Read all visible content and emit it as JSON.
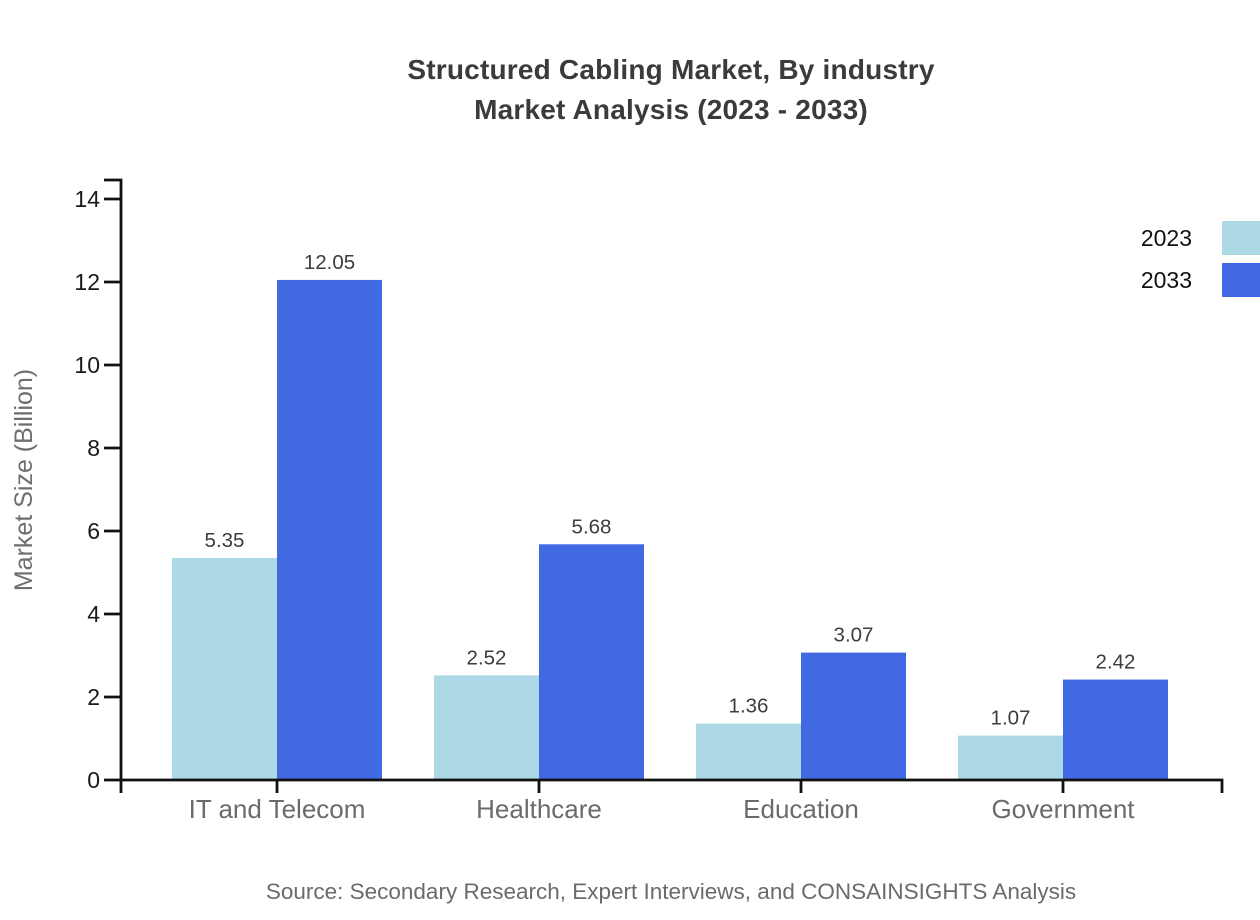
{
  "page": {
    "title_lines": [
      "Structured Cabling Market, By industry",
      "Market Analysis (2023 - 2033)"
    ],
    "source": "Source: Secondary Research, Expert Interviews, and CONSAINSIGHTS Analysis"
  },
  "colors": {
    "series_2023": "#ADD8E6",
    "series_2033": "#4169E1",
    "axis_line": "#111111",
    "ytick_label": "#1a1a1a",
    "category_label": "#6b6b6b",
    "value_label": "#3d3d3d",
    "title": "#3b3b3b",
    "ylabel": "#6e6e6e",
    "source_text": "#6b6b6b"
  },
  "legend": {
    "items": [
      {
        "label": "2023",
        "color": "#ADD8E6"
      },
      {
        "label": "2033",
        "color": "#4169E1"
      }
    ]
  },
  "chart_data": {
    "type": "bar",
    "title": "Structured Cabling Market, By industry Market Analysis (2023 - 2033)",
    "categories": [
      "IT and Telecom",
      "Healthcare",
      "Education",
      "Government"
    ],
    "series": [
      {
        "name": "2023",
        "color": "#ADD8E6",
        "values": [
          5.35,
          2.52,
          1.36,
          1.07
        ]
      },
      {
        "name": "2033",
        "color": "#4169E1",
        "values": [
          12.05,
          5.68,
          3.07,
          2.42
        ]
      }
    ],
    "xlabel": "",
    "ylabel": "Market Size (Billion)",
    "ylim": [
      0,
      14
    ],
    "yticks": [
      0,
      2,
      4,
      6,
      8,
      10,
      12,
      14
    ],
    "grid": false,
    "legend_position": "top-right-edge",
    "value_labels": true,
    "value_decimals": 2,
    "source": "Source: Secondary Research, Expert Interviews, and CONSAINSIGHTS Analysis"
  }
}
